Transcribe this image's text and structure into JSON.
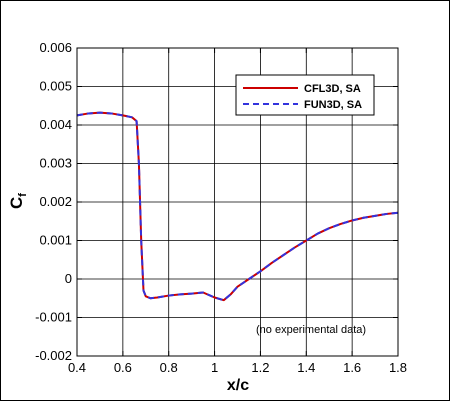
{
  "chart_data": {
    "type": "line",
    "xlabel": "x/c",
    "ylabel_base": "C",
    "ylabel_sub": "f",
    "xlim": [
      0.4,
      1.8
    ],
    "ylim": [
      -0.002,
      0.006
    ],
    "x_ticks": [
      "0.4",
      "0.6",
      "0.8",
      "1",
      "1.2",
      "1.4",
      "1.6",
      "1.8"
    ],
    "y_ticks": [
      "-0.002",
      "-0.001",
      "0",
      "0.001",
      "0.002",
      "0.003",
      "0.004",
      "0.005",
      "0.006"
    ],
    "grid": true,
    "legend_position": "top-right",
    "annotation": "(no experimental data)",
    "series": [
      {
        "name": "CFL3D, SA",
        "color": "#cc0000",
        "style": "solid",
        "x": [
          0.4,
          0.45,
          0.5,
          0.55,
          0.6,
          0.64,
          0.66,
          0.67,
          0.68,
          0.69,
          0.7,
          0.72,
          0.75,
          0.8,
          0.85,
          0.9,
          0.95,
          1.0,
          1.04,
          1.07,
          1.1,
          1.15,
          1.2,
          1.25,
          1.3,
          1.35,
          1.4,
          1.45,
          1.5,
          1.55,
          1.6,
          1.65,
          1.7,
          1.75,
          1.8
        ],
        "y": [
          0.00425,
          0.0043,
          0.00432,
          0.0043,
          0.00425,
          0.0042,
          0.0041,
          0.003,
          0.001,
          -0.0003,
          -0.00045,
          -0.0005,
          -0.00048,
          -0.00043,
          -0.0004,
          -0.00038,
          -0.00035,
          -0.00048,
          -0.00055,
          -0.0004,
          -0.0002,
          0.0,
          0.0002,
          0.00042,
          0.00062,
          0.00082,
          0.001,
          0.00118,
          0.00132,
          0.00143,
          0.00152,
          0.00159,
          0.00164,
          0.00169,
          0.00172
        ]
      },
      {
        "name": "FUN3D, SA",
        "color": "#3333dd",
        "style": "dashed",
        "x": [
          0.4,
          0.45,
          0.5,
          0.55,
          0.6,
          0.64,
          0.66,
          0.67,
          0.68,
          0.69,
          0.7,
          0.72,
          0.75,
          0.8,
          0.85,
          0.9,
          0.95,
          1.0,
          1.04,
          1.07,
          1.1,
          1.15,
          1.2,
          1.25,
          1.3,
          1.35,
          1.4,
          1.45,
          1.5,
          1.55,
          1.6,
          1.65,
          1.7,
          1.75,
          1.8
        ],
        "y": [
          0.00425,
          0.0043,
          0.00432,
          0.0043,
          0.00425,
          0.0042,
          0.0041,
          0.003,
          0.001,
          -0.0003,
          -0.00045,
          -0.0005,
          -0.00048,
          -0.00043,
          -0.0004,
          -0.00038,
          -0.00035,
          -0.00048,
          -0.00055,
          -0.0004,
          -0.0002,
          0.0,
          0.0002,
          0.00042,
          0.00062,
          0.00082,
          0.001,
          0.00118,
          0.00132,
          0.00143,
          0.00152,
          0.00159,
          0.00164,
          0.00169,
          0.00172
        ]
      }
    ]
  }
}
